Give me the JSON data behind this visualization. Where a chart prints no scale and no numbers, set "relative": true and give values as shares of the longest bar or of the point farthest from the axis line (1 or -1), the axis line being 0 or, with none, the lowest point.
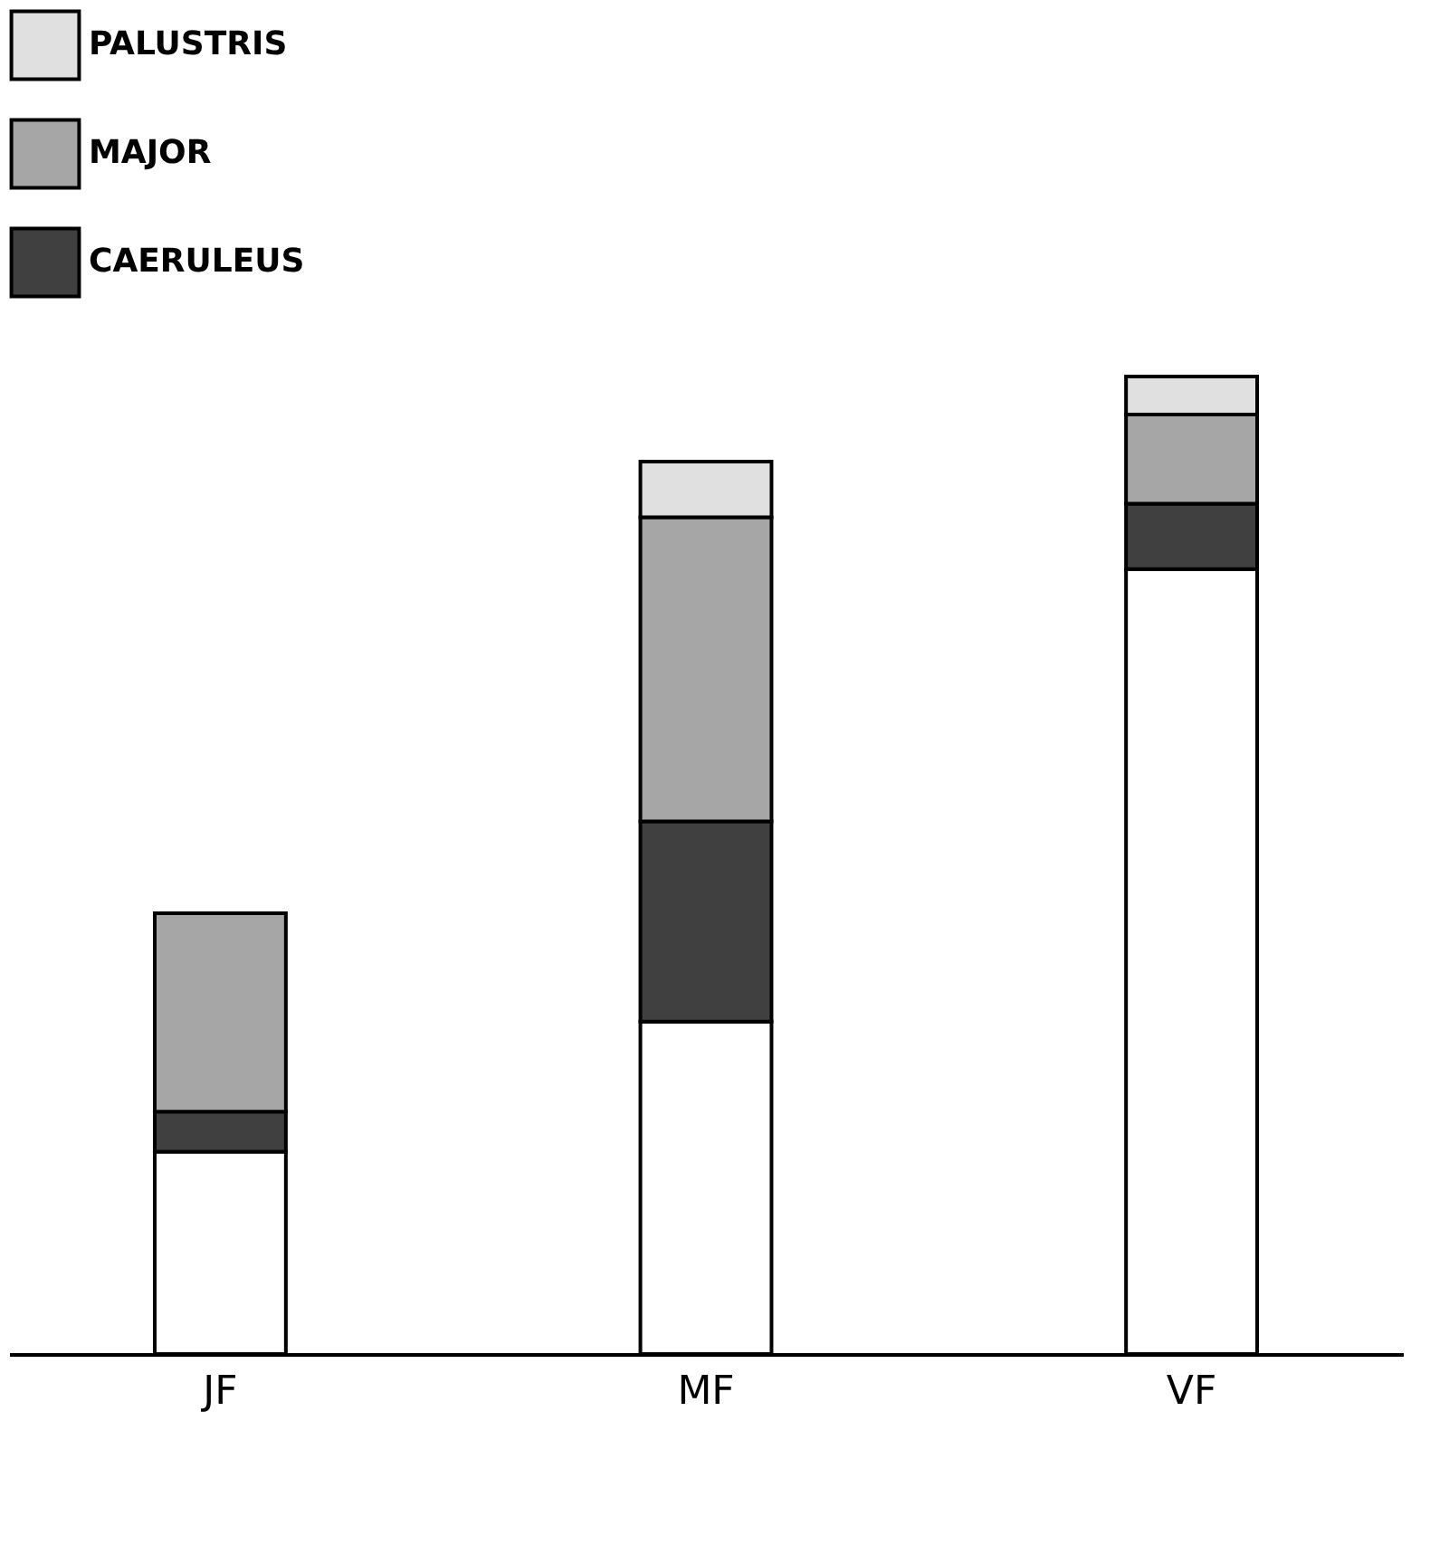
{
  "chart_data": {
    "type": "bar",
    "stacked": true,
    "relative": true,
    "categories": [
      "JF",
      "MF",
      "VF"
    ],
    "series": [
      {
        "color": "#ffffff",
        "values": [
          0.207,
          0.34,
          0.803
        ]
      },
      {
        "name": "CAERULEUS",
        "color": "#404040",
        "values": [
          0.041,
          0.205,
          0.067
        ]
      },
      {
        "name": "MAJOR",
        "color": "#a6a6a6",
        "values": [
          0.203,
          0.311,
          0.091
        ]
      },
      {
        "name": "PALUSTRIS",
        "color": "#e0e0e0",
        "values": [
          null,
          0.057,
          0.039
        ]
      }
    ],
    "legend": "top left",
    "grid": false
  }
}
